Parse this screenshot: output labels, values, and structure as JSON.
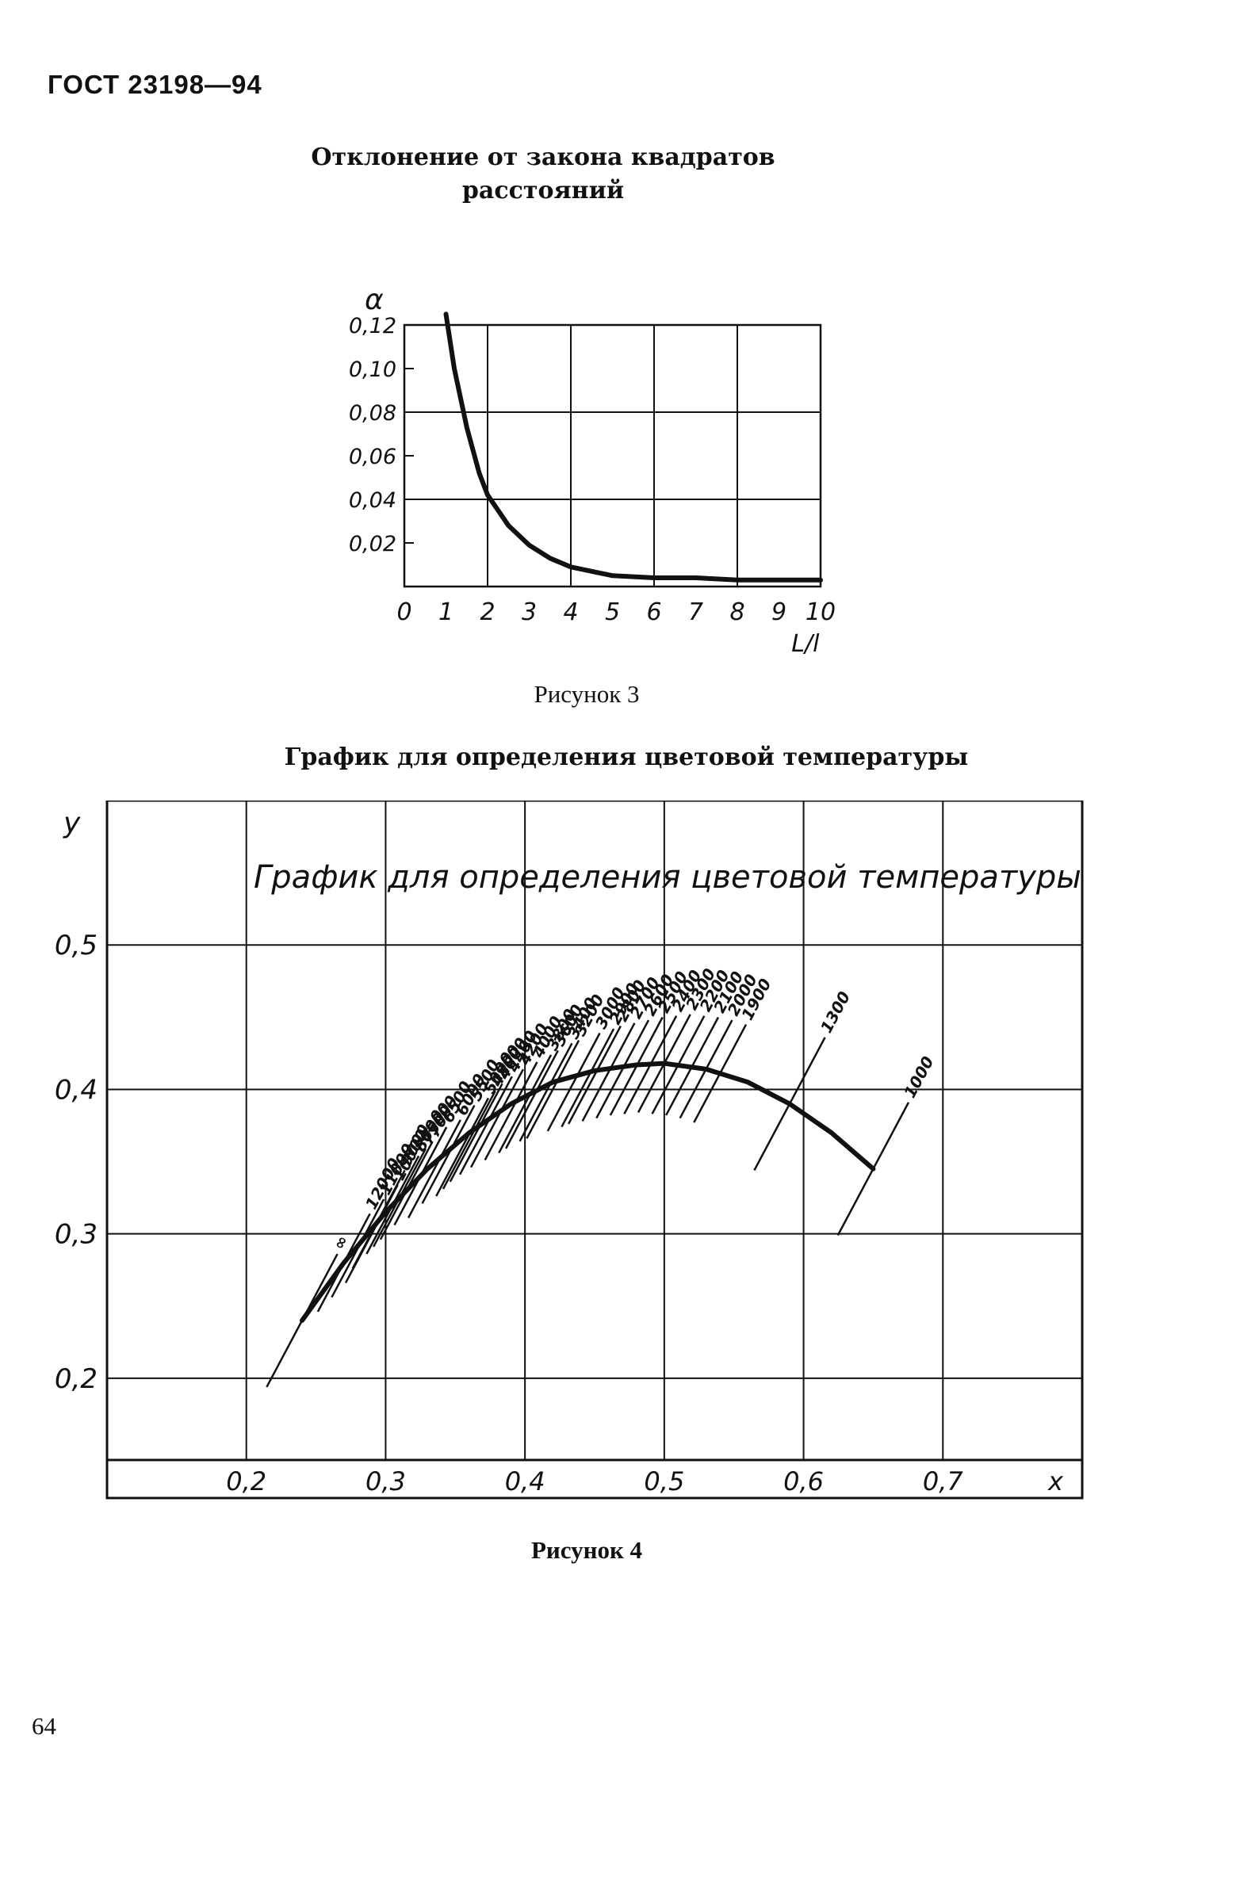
{
  "header": {
    "doc_code": "ГОСТ 23198—94"
  },
  "page_number": "64",
  "figure3": {
    "title_line1": "Отклонение от закона квадратов",
    "title_line2": "расстояний",
    "caption": "Рисунок 3",
    "chart_data": {
      "type": "line",
      "title": "Отклонение от закона квадратов расстояний",
      "ylabel": "α",
      "xlabel": "L/l",
      "x_ticks": [
        "0",
        "1",
        "2",
        "3",
        "4",
        "5",
        "6",
        "7",
        "8",
        "9",
        "10"
      ],
      "y_ticks": [
        "0,12",
        "0,10",
        "0,08",
        "0,06",
        "0,04",
        "0,02"
      ],
      "xlim": [
        0,
        10
      ],
      "ylim": [
        0,
        0.12
      ],
      "grid": true,
      "series": [
        {
          "x": [
            1.0,
            1.2,
            1.5,
            1.8,
            2.0,
            2.5,
            3.0,
            3.5,
            4.0,
            5.0,
            6.0,
            7.0,
            8.0,
            9.0,
            10.0
          ],
          "y": [
            0.125,
            0.1,
            0.073,
            0.052,
            0.042,
            0.028,
            0.019,
            0.013,
            0.009,
            0.005,
            0.004,
            0.004,
            0.003,
            0.003,
            0.003
          ]
        }
      ]
    }
  },
  "figure4": {
    "title": "График для определения цветовой температуры",
    "caption": "Рисунок 4",
    "chart_data": {
      "type": "line",
      "title": "График для определения цветовой температуры",
      "xlabel": "x",
      "ylabel": "y",
      "x_ticks": [
        "0,2",
        "0,3",
        "0,4",
        "0,5",
        "0,6",
        "0,7"
      ],
      "y_ticks": [
        "0,5",
        "0,4",
        "0,3",
        "0,2"
      ],
      "xlim": [
        0.1,
        0.8
      ],
      "ylim": [
        0.15,
        0.6
      ],
      "grid": true,
      "locus": {
        "x": [
          0.24,
          0.27,
          0.3,
          0.33,
          0.36,
          0.39,
          0.42,
          0.45,
          0.48,
          0.5,
          0.53,
          0.56,
          0.59,
          0.62,
          0.65
        ],
        "y": [
          0.24,
          0.28,
          0.315,
          0.345,
          0.37,
          0.39,
          0.405,
          0.413,
          0.417,
          0.418,
          0.414,
          0.405,
          0.39,
          0.37,
          0.345
        ]
      },
      "isotherms": [
        {
          "label": "∞",
          "x": 0.24,
          "y": 0.24
        },
        {
          "label": "12000",
          "x": 0.27,
          "y": 0.28
        },
        {
          "label": "11000",
          "x": 0.28,
          "y": 0.29
        },
        {
          "label": "10000",
          "x": 0.29,
          "y": 0.3
        },
        {
          "label": "9000",
          "x": 0.295,
          "y": 0.31
        },
        {
          "label": "8000",
          "x": 0.305,
          "y": 0.32
        },
        {
          "label": "7500",
          "x": 0.31,
          "y": 0.325
        },
        {
          "label": "7000",
          "x": 0.315,
          "y": 0.33
        },
        {
          "label": "6500",
          "x": 0.325,
          "y": 0.34
        },
        {
          "label": "6000",
          "x": 0.335,
          "y": 0.345
        },
        {
          "label": "5500",
          "x": 0.345,
          "y": 0.355
        },
        {
          "label": "5000",
          "x": 0.355,
          "y": 0.36
        },
        {
          "label": "4800",
          "x": 0.36,
          "y": 0.365
        },
        {
          "label": "4600",
          "x": 0.365,
          "y": 0.37
        },
        {
          "label": "4400",
          "x": 0.372,
          "y": 0.375
        },
        {
          "label": "4200",
          "x": 0.38,
          "y": 0.38
        },
        {
          "label": "4000",
          "x": 0.39,
          "y": 0.385
        },
        {
          "label": "3800",
          "x": 0.4,
          "y": 0.39
        },
        {
          "label": "3600",
          "x": 0.405,
          "y": 0.393
        },
        {
          "label": "3400",
          "x": 0.415,
          "y": 0.398
        },
        {
          "label": "3200",
          "x": 0.42,
          "y": 0.4
        },
        {
          "label": "3000",
          "x": 0.435,
          "y": 0.405
        },
        {
          "label": "2900",
          "x": 0.445,
          "y": 0.408
        },
        {
          "label": "2800",
          "x": 0.45,
          "y": 0.41
        },
        {
          "label": "2700",
          "x": 0.46,
          "y": 0.412
        },
        {
          "label": "2600",
          "x": 0.47,
          "y": 0.414
        },
        {
          "label": "2500",
          "x": 0.48,
          "y": 0.416
        },
        {
          "label": "2400",
          "x": 0.49,
          "y": 0.417
        },
        {
          "label": "2300",
          "x": 0.5,
          "y": 0.418
        },
        {
          "label": "2200",
          "x": 0.51,
          "y": 0.417
        },
        {
          "label": "2100",
          "x": 0.52,
          "y": 0.416
        },
        {
          "label": "2000",
          "x": 0.53,
          "y": 0.414
        },
        {
          "label": "1900",
          "x": 0.54,
          "y": 0.411
        },
        {
          "label": "1300",
          "x": 0.59,
          "y": 0.39
        },
        {
          "label": "1000",
          "x": 0.65,
          "y": 0.345
        }
      ]
    }
  }
}
